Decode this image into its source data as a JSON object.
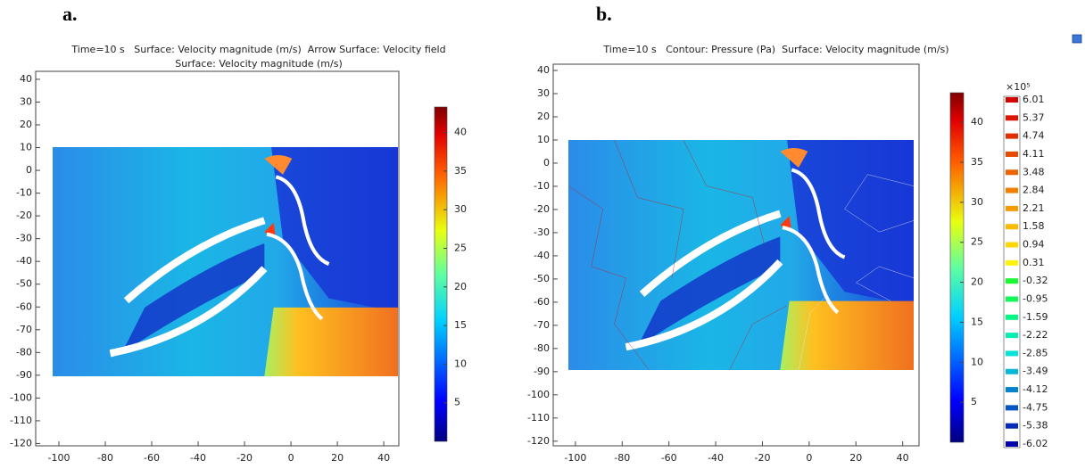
{
  "chart_data": [
    {
      "type": "surface",
      "panel_label": "a.",
      "title": [
        "Time=10 s   Surface: Velocity magnitude (m/s)  Arrow Surface: Velocity field",
        "Surface: Velocity magnitude (m/s)"
      ],
      "xlim": [
        -110,
        46.5
      ],
      "ylim": [
        -121,
        43.5
      ],
      "xticks": [
        -100,
        -80,
        -60,
        -40,
        -20,
        0,
        20,
        40
      ],
      "yticks": [
        40,
        30,
        20,
        10,
        0,
        -10,
        -20,
        -30,
        -40,
        -50,
        -60,
        -70,
        -80,
        -90,
        -100,
        -110,
        -120
      ],
      "colorbar_lim": [
        0,
        43.3
      ],
      "colorbar_ticks": [
        40,
        35,
        30,
        25,
        20,
        15,
        10,
        5
      ]
    },
    {
      "type": "surface",
      "panel_label": "b.",
      "title": [
        "Time=10 s   Contour: Pressure (Pa)  Surface: Velocity magnitude (m/s)"
      ],
      "xlim": [
        -109.5,
        47
      ],
      "ylim": [
        -122,
        42.7
      ],
      "xticks": [
        -100,
        -80,
        -60,
        -40,
        -20,
        0,
        20,
        40
      ],
      "yticks": [
        40,
        30,
        20,
        10,
        0,
        -10,
        -20,
        -30,
        -40,
        -50,
        -60,
        -70,
        -80,
        -90,
        -100,
        -110,
        -120
      ],
      "colorbar_lim": [
        0,
        43.7
      ],
      "colorbar_ticks": [
        40,
        35,
        30,
        25,
        20,
        15,
        10,
        5
      ],
      "contour_scale": "×10⁵",
      "contour_levels": [
        6.01,
        5.37,
        4.74,
        4.11,
        3.48,
        2.84,
        2.21,
        1.58,
        0.94,
        0.31,
        -0.32,
        -0.95,
        -1.59,
        -2.22,
        -2.85,
        -3.49,
        -4.12,
        -4.75,
        -5.38,
        -6.02
      ]
    }
  ]
}
